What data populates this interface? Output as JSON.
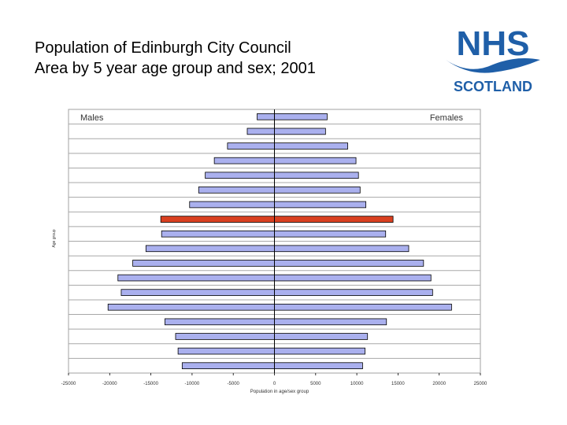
{
  "title": {
    "line1": "Population of Edinburgh City Council",
    "line2": "Area by 5 year age group and sex; 2001"
  },
  "logo": {
    "name": "NHS",
    "sub": "SCOTLAND",
    "color": "#1f5fa8"
  },
  "chart_data": {
    "type": "bar",
    "orientation": "horizontal",
    "xlabel": "Population in age/sex group",
    "ylabel": "Age group",
    "xlim": [
      -25000,
      25000
    ],
    "xticks": [
      -25000,
      -20000,
      -15000,
      -10000,
      -5000,
      0,
      5000,
      10000,
      15000,
      20000,
      25000
    ],
    "grid": true,
    "series": [
      {
        "name": "Males",
        "color": "#aab0ee",
        "values": [
          -2100,
          -3300,
          -5700,
          -7300,
          -8400,
          -9200,
          -10300,
          -13800,
          -13700,
          -15600,
          -17200,
          -19000,
          -18600,
          -20200,
          -13300,
          -12000,
          -11700,
          -11200
        ]
      },
      {
        "name": "Females",
        "color": "#aab0ee",
        "values": [
          6400,
          6200,
          8900,
          9900,
          10200,
          10400,
          11100,
          14400,
          13500,
          16300,
          18100,
          19000,
          19200,
          21500,
          13600,
          11300,
          11000,
          10700
        ]
      }
    ],
    "highlight_index": 7,
    "highlight_color": "#d94020"
  }
}
